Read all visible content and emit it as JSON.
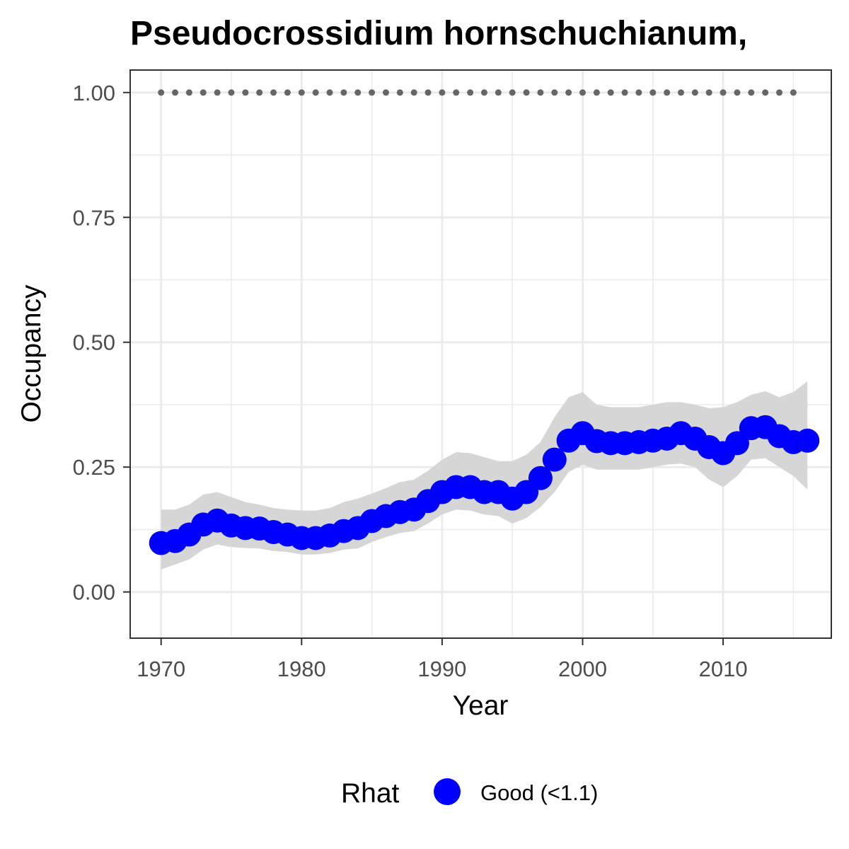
{
  "chart_data": {
    "type": "line",
    "title": "Pseudocrossidium hornschuchianum,",
    "xlabel": "Year",
    "ylabel": "Occupancy",
    "xlim": [
      1967.8,
      2017.7
    ],
    "ylim": [
      -0.0925,
      1.045
    ],
    "x_ticks": [
      1970,
      1980,
      1990,
      2000,
      2010
    ],
    "x_tick_labels": [
      "1970",
      "1980",
      "1990",
      "2000",
      "2010"
    ],
    "y_ticks": [
      0,
      0.25,
      0.5,
      0.75,
      1.0
    ],
    "y_tick_labels": [
      "0.00",
      "0.25",
      "0.50",
      "0.75",
      "1.00"
    ],
    "grid": true,
    "legend": {
      "position": "bottom",
      "title": "Rhat",
      "entries": [
        {
          "label": "Good (<1.1)",
          "color": "#0000ff"
        }
      ]
    },
    "colors": {
      "points": "#0000ff",
      "ribbon": "#d6d6d6",
      "reference_dots": "#666666",
      "grid": "#ebebeb",
      "panel_border": "#333333"
    },
    "series": [
      {
        "x": [
          1970,
          1971,
          1972,
          1973,
          1974,
          1975,
          1976,
          1977,
          1978,
          1979,
          1980,
          1981,
          1982,
          1983,
          1984,
          1985,
          1986,
          1987,
          1988,
          1989,
          1990,
          1991,
          1992,
          1993,
          1994,
          1995,
          1996,
          1997,
          1998,
          1999,
          2000,
          2001,
          2002,
          2003,
          2004,
          2005,
          2006,
          2007,
          2008,
          2009,
          2010,
          2011,
          2012,
          2013,
          2014,
          2015,
          2016
        ],
        "values": [
          0.098,
          0.102,
          0.115,
          0.135,
          0.143,
          0.133,
          0.128,
          0.127,
          0.12,
          0.115,
          0.108,
          0.108,
          0.113,
          0.122,
          0.128,
          0.142,
          0.152,
          0.16,
          0.165,
          0.182,
          0.2,
          0.21,
          0.21,
          0.2,
          0.2,
          0.187,
          0.2,
          0.228,
          0.265,
          0.303,
          0.318,
          0.302,
          0.298,
          0.298,
          0.3,
          0.303,
          0.307,
          0.318,
          0.307,
          0.29,
          0.278,
          0.298,
          0.328,
          0.33,
          0.312,
          0.3,
          0.303
        ]
      },
      {
        "x": [
          1970,
          1971,
          1972,
          1973,
          1974,
          1975,
          1976,
          1977,
          1978,
          1979,
          1980,
          1981,
          1982,
          1983,
          1984,
          1985,
          1986,
          1987,
          1988,
          1989,
          1990,
          1991,
          1992,
          1993,
          1994,
          1995,
          1996,
          1997,
          1998,
          1999,
          2000,
          2001,
          2002,
          2003,
          2004,
          2005,
          2006,
          2007,
          2008,
          2009,
          2010,
          2011,
          2012,
          2013,
          2014,
          2015,
          2016
        ],
        "lower": [
          0.045,
          0.055,
          0.065,
          0.085,
          0.095,
          0.09,
          0.088,
          0.087,
          0.082,
          0.08,
          0.075,
          0.075,
          0.078,
          0.085,
          0.087,
          0.1,
          0.11,
          0.118,
          0.122,
          0.137,
          0.155,
          0.165,
          0.163,
          0.155,
          0.152,
          0.137,
          0.148,
          0.17,
          0.2,
          0.24,
          0.255,
          0.245,
          0.245,
          0.245,
          0.245,
          0.25,
          0.255,
          0.257,
          0.25,
          0.225,
          0.21,
          0.232,
          0.265,
          0.268,
          0.25,
          0.232,
          0.205
        ],
        "upper": [
          0.165,
          0.165,
          0.175,
          0.195,
          0.2,
          0.19,
          0.18,
          0.175,
          0.168,
          0.165,
          0.163,
          0.163,
          0.168,
          0.18,
          0.187,
          0.197,
          0.208,
          0.22,
          0.225,
          0.243,
          0.265,
          0.28,
          0.278,
          0.27,
          0.262,
          0.262,
          0.275,
          0.3,
          0.35,
          0.39,
          0.4,
          0.375,
          0.37,
          0.37,
          0.37,
          0.375,
          0.38,
          0.38,
          0.375,
          0.368,
          0.37,
          0.38,
          0.395,
          0.402,
          0.39,
          0.4,
          0.422
        ]
      },
      {
        "x": [
          1970,
          1971,
          1972,
          1973,
          1974,
          1975,
          1976,
          1977,
          1978,
          1979,
          1980,
          1981,
          1982,
          1983,
          1984,
          1985,
          1986,
          1987,
          1988,
          1989,
          1990,
          1991,
          1992,
          1993,
          1994,
          1995,
          1996,
          1997,
          1998,
          1999,
          2000,
          2001,
          2002,
          2003,
          2004,
          2005,
          2006,
          2007,
          2008,
          2009,
          2010,
          2011,
          2012,
          2013,
          2014,
          2015
        ],
        "values": [
          1,
          1,
          1,
          1,
          1,
          1,
          1,
          1,
          1,
          1,
          1,
          1,
          1,
          1,
          1,
          1,
          1,
          1,
          1,
          1,
          1,
          1,
          1,
          1,
          1,
          1,
          1,
          1,
          1,
          1,
          1,
          1,
          1,
          1,
          1,
          1,
          1,
          1,
          1,
          1,
          1,
          1,
          1,
          1,
          1,
          1
        ]
      }
    ]
  }
}
